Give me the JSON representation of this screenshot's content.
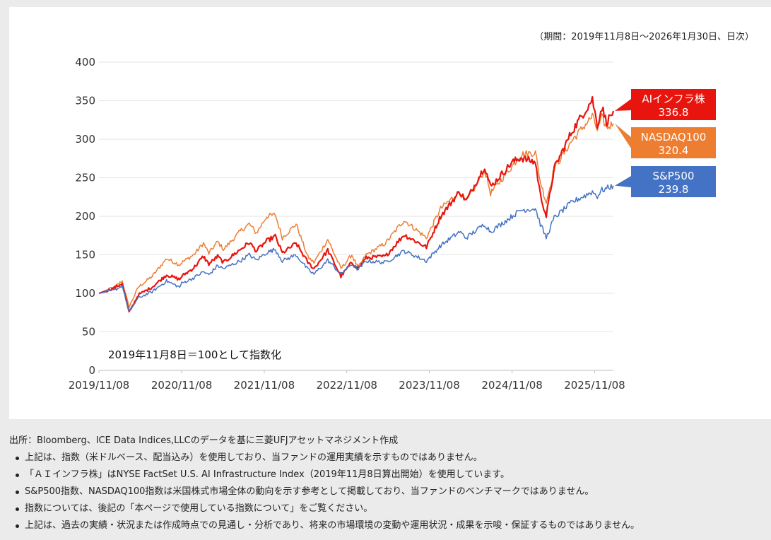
{
  "period_note": "（期間：2019年11月8日～2026年1月30日、日次）",
  "annotation": "2019年11月8日＝100として指数化",
  "source": "出所：Bloomberg、ICE Data Indices,LLCのデータを基に三菱UFJアセットマネジメント作成",
  "notes": [
    "上記は、指数（米ドルベース、配当込み）を使用しており、当ファンドの運用実績を示すものではありません。",
    "「ＡＩインフラ株」はNYSE FactSet U.S. AI Infrastructure Index（2019年11月8日算出開始）を使用しています。",
    "S&P500指数、NASDAQ100指数は米国株式市場全体の動向を示す参考として掲載しており、当ファンドのベンチマークではありません。",
    "指数については、後記の「本ページで使用している指数について」をご覧ください。",
    "上記は、過去の実績・状況または作成時点での見通し・分析であり、将来の市場環境の変動や運用状況・成果を示唆・保証するものではありません。"
  ],
  "chart_data": {
    "type": "line",
    "xlabel": "",
    "ylabel": "",
    "ylim": [
      0,
      400
    ],
    "yticks": [
      0,
      50,
      100,
      150,
      200,
      250,
      300,
      350,
      400
    ],
    "xticks": [
      "2019/11/08",
      "2020/11/08",
      "2021/11/08",
      "2022/11/08",
      "2023/11/08",
      "2024/11/08",
      "2025/11/08"
    ],
    "xlim": [
      "2019-11-08",
      "2026-01-30"
    ],
    "grid": true,
    "legend": "end-of-line labels",
    "series": [
      {
        "name": "NASDAQ100",
        "color": "#ed7d31",
        "end_label": "320.4",
        "tag_label": "NASDAQ100",
        "points": [
          [
            "2019-11-08",
            100
          ],
          [
            "2020-01-15",
            108
          ],
          [
            "2020-02-19",
            116
          ],
          [
            "2020-03-20",
            82
          ],
          [
            "2020-04-30",
            108
          ],
          [
            "2020-06-30",
            122
          ],
          [
            "2020-09-02",
            145
          ],
          [
            "2020-10-30",
            137
          ],
          [
            "2020-11-08",
            140
          ],
          [
            "2020-12-31",
            150
          ],
          [
            "2021-02-12",
            165
          ],
          [
            "2021-03-08",
            152
          ],
          [
            "2021-04-16",
            167
          ],
          [
            "2021-05-12",
            157
          ],
          [
            "2021-07-30",
            182
          ],
          [
            "2021-09-03",
            190
          ],
          [
            "2021-10-04",
            178
          ],
          [
            "2021-11-19",
            200
          ],
          [
            "2021-12-27",
            202
          ],
          [
            "2022-01-27",
            172
          ],
          [
            "2022-03-29",
            190
          ],
          [
            "2022-05-20",
            147
          ],
          [
            "2022-06-16",
            140
          ],
          [
            "2022-08-16",
            170
          ],
          [
            "2022-10-13",
            132
          ],
          [
            "2022-11-30",
            150
          ],
          [
            "2022-12-28",
            133
          ],
          [
            "2023-02-02",
            150
          ],
          [
            "2023-04-28",
            165
          ],
          [
            "2023-07-19",
            195
          ],
          [
            "2023-10-26",
            172
          ],
          [
            "2023-12-28",
            210
          ],
          [
            "2024-03-21",
            232
          ],
          [
            "2024-04-19",
            218
          ],
          [
            "2024-07-10",
            260
          ],
          [
            "2024-08-05",
            230
          ],
          [
            "2024-11-08",
            265
          ],
          [
            "2024-12-16",
            280
          ],
          [
            "2025-02-19",
            283
          ],
          [
            "2025-03-13",
            245
          ],
          [
            "2025-04-08",
            218
          ],
          [
            "2025-05-13",
            262
          ],
          [
            "2025-07-30",
            298
          ],
          [
            "2025-10-29",
            330
          ],
          [
            "2025-11-20",
            312
          ],
          [
            "2025-12-10",
            328
          ],
          [
            "2025-12-31",
            315
          ],
          [
            "2026-01-30",
            320.4
          ]
        ]
      },
      {
        "name": "AIインフラ株",
        "color": "#e8150f",
        "end_label": "336.8",
        "tag_label": "AIインフラ株",
        "points": [
          [
            "2019-11-08",
            100
          ],
          [
            "2020-01-15",
            107
          ],
          [
            "2020-02-19",
            113
          ],
          [
            "2020-03-20",
            75
          ],
          [
            "2020-04-30",
            98
          ],
          [
            "2020-06-30",
            108
          ],
          [
            "2020-09-02",
            124
          ],
          [
            "2020-10-30",
            118
          ],
          [
            "2020-11-08",
            122
          ],
          [
            "2020-12-31",
            133
          ],
          [
            "2021-02-12",
            148
          ],
          [
            "2021-03-08",
            138
          ],
          [
            "2021-04-16",
            148
          ],
          [
            "2021-05-12",
            140
          ],
          [
            "2021-07-30",
            158
          ],
          [
            "2021-09-03",
            166
          ],
          [
            "2021-10-04",
            155
          ],
          [
            "2021-11-19",
            168
          ],
          [
            "2021-12-27",
            174
          ],
          [
            "2022-01-27",
            152
          ],
          [
            "2022-03-29",
            165
          ],
          [
            "2022-05-20",
            140
          ],
          [
            "2022-06-16",
            132
          ],
          [
            "2022-08-16",
            156
          ],
          [
            "2022-10-13",
            122
          ],
          [
            "2022-11-30",
            140
          ],
          [
            "2022-12-28",
            132
          ],
          [
            "2023-02-02",
            146
          ],
          [
            "2023-04-28",
            148
          ],
          [
            "2023-07-19",
            176
          ],
          [
            "2023-10-26",
            160
          ],
          [
            "2023-12-28",
            200
          ],
          [
            "2024-03-21",
            232
          ],
          [
            "2024-04-19",
            220
          ],
          [
            "2024-07-10",
            265
          ],
          [
            "2024-08-05",
            238
          ],
          [
            "2024-11-08",
            270
          ],
          [
            "2024-12-16",
            276
          ],
          [
            "2025-02-19",
            270
          ],
          [
            "2025-03-13",
            228
          ],
          [
            "2025-04-08",
            200
          ],
          [
            "2025-05-13",
            262
          ],
          [
            "2025-07-30",
            310
          ],
          [
            "2025-10-29",
            352
          ],
          [
            "2025-11-20",
            318
          ],
          [
            "2025-12-10",
            342
          ],
          [
            "2025-12-31",
            322
          ],
          [
            "2026-01-30",
            336.8
          ]
        ]
      },
      {
        "name": "S&P500",
        "color": "#4472c4",
        "end_label": "239.8",
        "tag_label": "S&P500",
        "points": [
          [
            "2019-11-08",
            100
          ],
          [
            "2020-01-15",
            104
          ],
          [
            "2020-02-19",
            110
          ],
          [
            "2020-03-20",
            76
          ],
          [
            "2020-04-30",
            94
          ],
          [
            "2020-06-30",
            102
          ],
          [
            "2020-09-02",
            116
          ],
          [
            "2020-10-30",
            108
          ],
          [
            "2020-11-08",
            113
          ],
          [
            "2020-12-31",
            120
          ],
          [
            "2021-02-12",
            128
          ],
          [
            "2021-03-08",
            124
          ],
          [
            "2021-04-16",
            136
          ],
          [
            "2021-05-12",
            132
          ],
          [
            "2021-07-30",
            143
          ],
          [
            "2021-09-03",
            150
          ],
          [
            "2021-10-04",
            143
          ],
          [
            "2021-11-19",
            153
          ],
          [
            "2021-12-27",
            157
          ],
          [
            "2022-01-27",
            142
          ],
          [
            "2022-03-29",
            150
          ],
          [
            "2022-05-20",
            131
          ],
          [
            "2022-06-16",
            125
          ],
          [
            "2022-08-16",
            143
          ],
          [
            "2022-10-13",
            125
          ],
          [
            "2022-11-30",
            138
          ],
          [
            "2022-12-28",
            131
          ],
          [
            "2023-02-02",
            142
          ],
          [
            "2023-04-28",
            140
          ],
          [
            "2023-07-19",
            155
          ],
          [
            "2023-10-26",
            142
          ],
          [
            "2023-12-28",
            162
          ],
          [
            "2024-03-21",
            180
          ],
          [
            "2024-04-19",
            172
          ],
          [
            "2024-07-10",
            190
          ],
          [
            "2024-08-05",
            180
          ],
          [
            "2024-11-08",
            200
          ],
          [
            "2024-12-16",
            208
          ],
          [
            "2025-02-19",
            210
          ],
          [
            "2025-03-13",
            190
          ],
          [
            "2025-04-08",
            172
          ],
          [
            "2025-05-13",
            198
          ],
          [
            "2025-07-30",
            218
          ],
          [
            "2025-10-29",
            232
          ],
          [
            "2025-11-20",
            226
          ],
          [
            "2025-12-10",
            234
          ],
          [
            "2025-12-31",
            236
          ],
          [
            "2026-01-30",
            239.8
          ]
        ]
      }
    ]
  }
}
